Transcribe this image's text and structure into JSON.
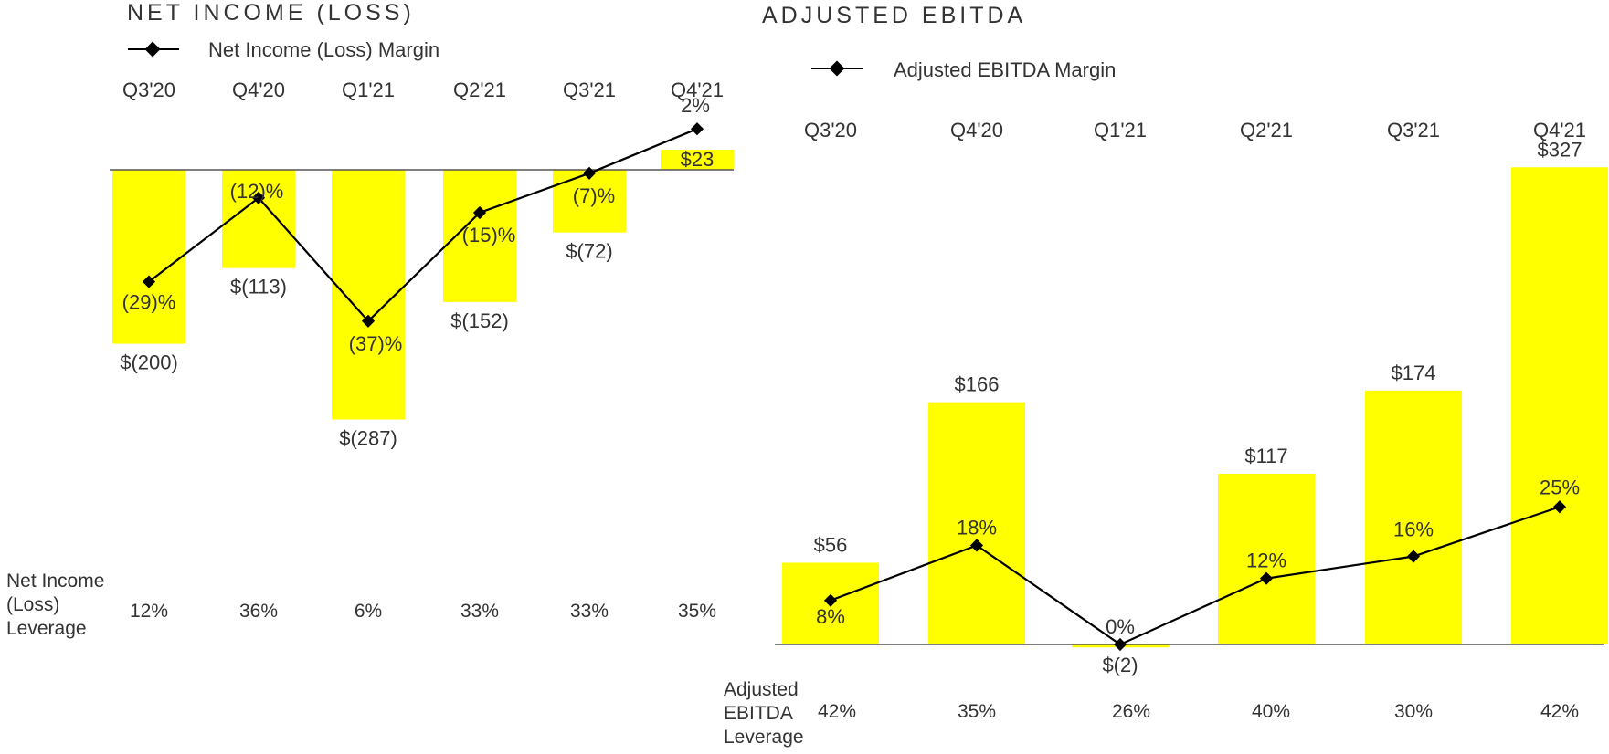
{
  "chart_data": [
    {
      "type": "bar",
      "title": "NET INCOME (LOSS)",
      "legend": "Net Income (Loss) Margin",
      "categories": [
        "Q3'20",
        "Q4'20",
        "Q1'21",
        "Q2'21",
        "Q3'21",
        "Q4'21"
      ],
      "values": [
        -200,
        -113,
        -287,
        -152,
        -72,
        23
      ],
      "value_labels": [
        "$(200)",
        "$(113)",
        "$(287)",
        "$(152)",
        "$(72)",
        "$23"
      ],
      "margin_values": [
        -29,
        -12,
        -37,
        -15,
        -7,
        2
      ],
      "margin_labels": [
        "(29)%",
        "(12)%",
        "(37)%",
        "(15)%",
        "(7)%",
        "2%"
      ],
      "footer_label": [
        "Net Income",
        "(Loss)",
        "Leverage"
      ],
      "footer_values": [
        "12%",
        "36%",
        "6%",
        "33%",
        "33%",
        "35%"
      ],
      "bar_color": "#FFFF00",
      "line_color": "#000000"
    },
    {
      "type": "bar",
      "title": "ADJUSTED EBITDA",
      "legend": "Adjusted EBITDA Margin",
      "categories": [
        "Q3'20",
        "Q4'20",
        "Q1'21",
        "Q2'21",
        "Q3'21",
        "Q4'21"
      ],
      "values": [
        56,
        166,
        -2,
        117,
        174,
        327
      ],
      "value_labels": [
        "$56",
        "$166",
        "$(2)",
        "$117",
        "$174",
        "$327"
      ],
      "margin_values": [
        8,
        18,
        0,
        12,
        16,
        25
      ],
      "margin_labels": [
        "8%",
        "18%",
        "0%",
        "12%",
        "16%",
        "25%"
      ],
      "footer_label": [
        "Adjusted",
        "EBITDA",
        "Leverage"
      ],
      "footer_values": [
        "42%",
        "35%",
        "26%",
        "40%",
        "30%",
        "42%"
      ],
      "bar_color": "#FFFF00",
      "line_color": "#000000"
    }
  ]
}
